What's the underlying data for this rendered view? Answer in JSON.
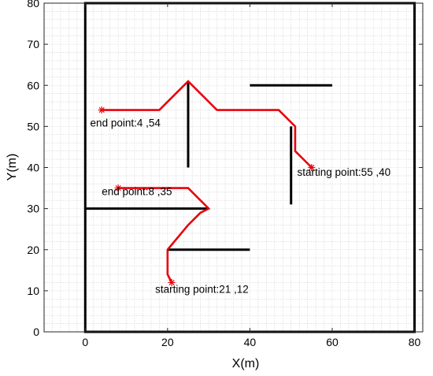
{
  "chart_data": {
    "type": "line",
    "title": "",
    "xlabel": "X(m)",
    "ylabel": "Y(m)",
    "xlim": [
      -10,
      82
    ],
    "ylim": [
      0,
      80
    ],
    "xticks": [
      0,
      20,
      40,
      60,
      80
    ],
    "yticks": [
      0,
      10,
      20,
      30,
      40,
      50,
      60,
      70,
      80
    ],
    "minor_grid": true,
    "grid_style": "dotted",
    "boundary": [
      [
        0,
        0
      ],
      [
        80,
        0
      ],
      [
        80,
        80
      ],
      [
        0,
        80
      ]
    ],
    "obstacles": [
      {
        "from": [
          25,
          61
        ],
        "to": [
          25,
          40
        ]
      },
      {
        "from": [
          40,
          60
        ],
        "to": [
          60,
          60
        ]
      },
      {
        "from": [
          50,
          50
        ],
        "to": [
          50,
          31
        ]
      },
      {
        "from": [
          0,
          30
        ],
        "to": [
          30,
          30
        ]
      },
      {
        "from": [
          20,
          20
        ],
        "to": [
          40,
          20
        ]
      }
    ],
    "series": [
      {
        "color": "#e8000b",
        "x": [
          55,
          51,
          51,
          47,
          32,
          25,
          18,
          4
        ],
        "y": [
          40,
          44,
          50,
          54,
          54,
          61,
          54,
          54
        ]
      },
      {
        "color": "#e8000b",
        "x": [
          21,
          20,
          20,
          25,
          28,
          30,
          25,
          8
        ],
        "y": [
          12,
          14,
          20,
          26,
          29,
          30,
          35,
          35
        ]
      }
    ],
    "annotations": [
      {
        "text": "starting point:55 ,40",
        "x": 51.5,
        "y": 38
      },
      {
        "text": "end point:4 ,54",
        "x": 1.2,
        "y": 50
      },
      {
        "text": "end point:8 ,35",
        "x": 4,
        "y": 33.3
      },
      {
        "text": "starting point:21 ,12",
        "x": 17,
        "y": 9.5
      }
    ]
  }
}
